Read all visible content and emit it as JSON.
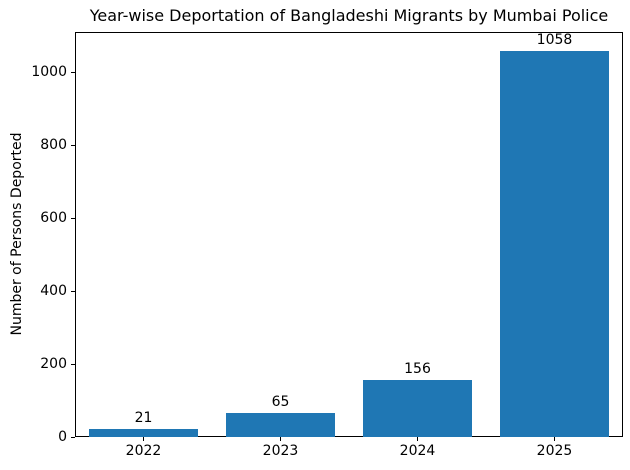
{
  "figure": {
    "background": "#ffffff",
    "text_color": "#000000"
  },
  "chart_data": {
    "type": "bar",
    "title": "Year-wise Deportation of Bangladeshi Migrants by Mumbai Police",
    "xlabel": "",
    "ylabel": "Number of Persons Deported",
    "categories": [
      "2022",
      "2023",
      "2024",
      "2025"
    ],
    "values": [
      21,
      65,
      156,
      1058
    ],
    "bar_value_labels": [
      "21",
      "65",
      "156",
      "1058"
    ],
    "yticks": [
      0,
      200,
      400,
      600,
      800,
      1000
    ],
    "ylim": [
      0,
      1111
    ],
    "bar_color": "#1f77b4",
    "spine_color": "#000000",
    "grid": false,
    "legend_position": "none"
  }
}
